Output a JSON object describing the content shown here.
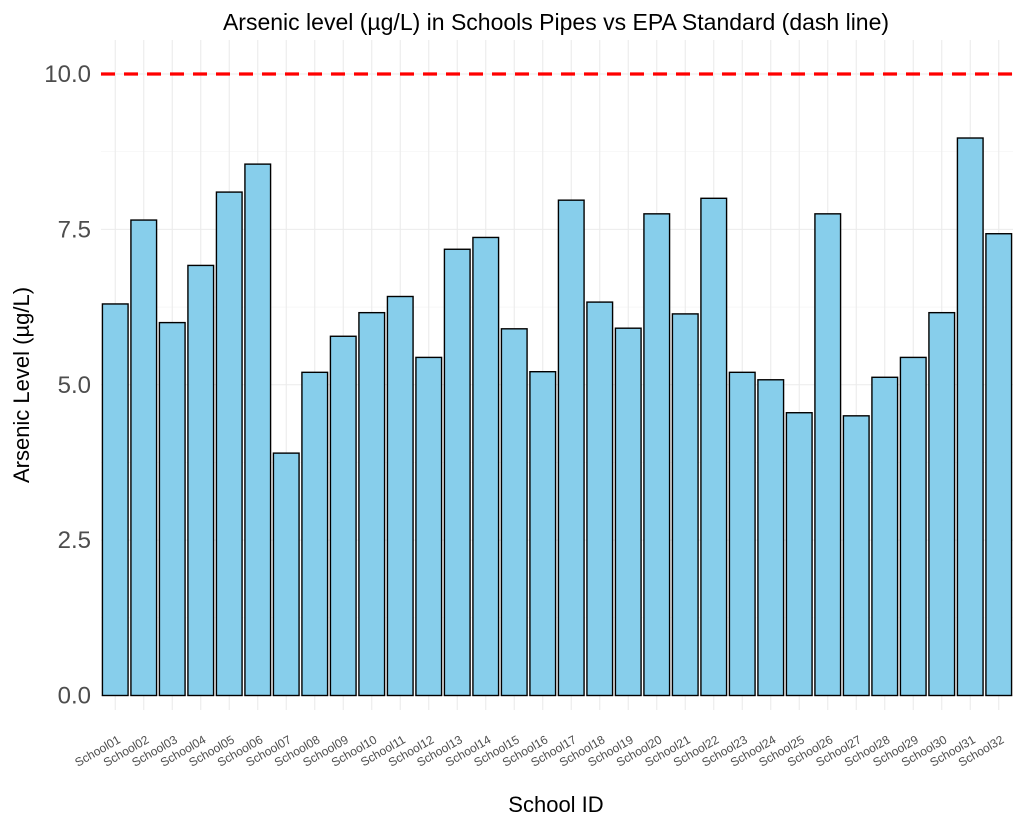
{
  "chart_data": {
    "type": "bar",
    "title": "Arsenic level (µg/L) in Schools Pipes vs EPA Standard (dash line)",
    "xlabel": "School ID",
    "ylabel": "Arsenic Level (µg/L)",
    "ylim": [
      0,
      10.2
    ],
    "yticks": [
      "0.0",
      "2.5",
      "5.0",
      "7.5",
      "10.0"
    ],
    "ytick_values": [
      0,
      2.5,
      5,
      7.5,
      10
    ],
    "grid": true,
    "categories": [
      "School01",
      "School02",
      "School03",
      "School04",
      "School05",
      "School06",
      "School07",
      "School08",
      "School09",
      "School10",
      "School11",
      "School12",
      "School13",
      "School14",
      "School15",
      "School16",
      "School17",
      "School18",
      "School19",
      "School20",
      "School21",
      "School22",
      "School23",
      "School24",
      "School25",
      "School26",
      "School27",
      "School28",
      "School29",
      "School30",
      "School31",
      "School32"
    ],
    "values": [
      6.3,
      7.65,
      6.0,
      6.92,
      8.1,
      8.55,
      3.9,
      5.2,
      5.78,
      6.16,
      6.42,
      5.44,
      7.18,
      7.37,
      5.9,
      5.21,
      7.97,
      6.33,
      5.91,
      7.75,
      6.14,
      8.0,
      5.2,
      5.08,
      4.55,
      7.75,
      4.5,
      5.12,
      5.44,
      6.16,
      8.97,
      7.43
    ],
    "reference_line": {
      "value": 10,
      "style": "dashed",
      "color": "#ff0000"
    },
    "bar_fill": "#87ceeb",
    "bar_stroke": "#000000"
  }
}
